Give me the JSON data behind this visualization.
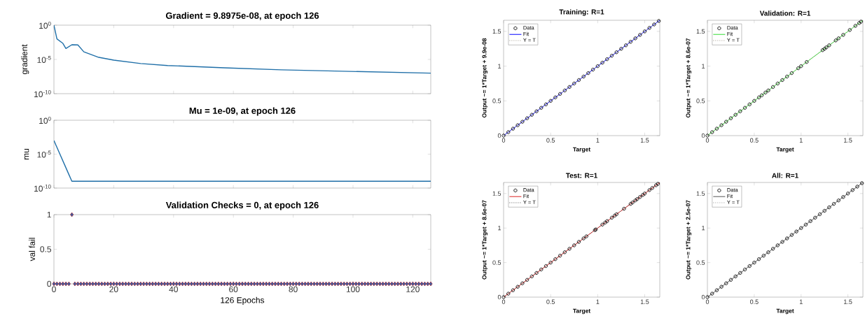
{
  "chart_data": [
    {
      "type": "line",
      "title": "Gradient = 9.8975e-08, at epoch 126",
      "ylabel": "gradient",
      "log": "y",
      "xlim": [
        0,
        126
      ],
      "xticks": [
        0,
        20,
        40,
        60,
        80,
        100,
        120
      ],
      "ylim": [
        1e-10,
        1
      ],
      "yticks": [
        {
          "value": 1e-10,
          "label": "10$^{-10}$"
        },
        {
          "value": 1e-05,
          "label": "10$^{-5}$"
        },
        {
          "value": 1,
          "label": "10$^{0}$"
        }
      ],
      "tick_labels": "y",
      "color": "#1f6fa8",
      "x": [
        0,
        1,
        3,
        4,
        6,
        8,
        10,
        15,
        20,
        29,
        38,
        57,
        76,
        94,
        126
      ],
      "values": [
        1,
        0.01,
        0.0022,
        0.0004,
        0.0014,
        0.0013,
        0.00013,
        2e-05,
        8e-06,
        2.5e-06,
        1.3e-06,
        6e-07,
        3e-07,
        2e-07,
        9.8975e-08
      ]
    },
    {
      "type": "line",
      "title": "Mu = 1e-09, at epoch 126",
      "ylabel": "mu",
      "log": "y",
      "xlim": [
        0,
        126
      ],
      "xticks": [
        0,
        20,
        40,
        60,
        80,
        100,
        120
      ],
      "ylim": [
        1e-10,
        1
      ],
      "yticks": [
        {
          "value": 1e-10,
          "label": "10$^{-10}$"
        },
        {
          "value": 1e-05,
          "label": "10$^{-5}$"
        },
        {
          "value": 1,
          "label": "10$^{0}$"
        }
      ],
      "tick_labels": "y",
      "color": "#1f6fa8",
      "x": [
        0,
        1,
        2,
        3,
        4,
        5,
        6,
        126
      ],
      "values": [
        0.001,
        0.0001,
        1e-05,
        1e-06,
        1e-07,
        1e-08,
        1e-09,
        1e-09
      ]
    },
    {
      "type": "scatter",
      "title": "Validation Checks = 0, at epoch 126",
      "xlabel": "126 Epochs",
      "ylabel": "val fail",
      "marker": "diamond",
      "xlim": [
        0,
        126
      ],
      "xticks": [
        0,
        20,
        40,
        60,
        80,
        100,
        120
      ],
      "ylim": [
        0,
        1
      ],
      "yticks": [
        0,
        0.5,
        1
      ],
      "color": "#3f5a9e",
      "x": [
        0,
        1,
        2,
        3,
        4,
        5,
        6,
        7,
        8,
        9,
        10,
        11,
        12,
        13,
        14,
        15,
        16,
        17,
        18,
        19,
        20,
        21,
        22,
        23,
        24,
        25,
        26,
        27,
        28,
        29,
        30,
        31,
        32,
        33,
        34,
        35,
        36,
        37,
        38,
        39,
        40,
        41,
        42,
        43,
        44,
        45,
        46,
        47,
        48,
        49,
        50,
        51,
        52,
        53,
        54,
        55,
        56,
        57,
        58,
        59,
        60,
        61,
        62,
        63,
        64,
        65,
        66,
        67,
        68,
        69,
        70,
        71,
        72,
        73,
        74,
        75,
        76,
        77,
        78,
        79,
        80,
        81,
        82,
        83,
        84,
        85,
        86,
        87,
        88,
        89,
        90,
        91,
        92,
        93,
        94,
        95,
        96,
        97,
        98,
        99,
        100,
        101,
        102,
        103,
        104,
        105,
        106,
        107,
        108,
        109,
        110,
        111,
        112,
        113,
        114,
        115,
        116,
        117,
        118,
        119,
        120,
        121,
        122,
        123,
        124,
        125,
        126
      ],
      "values": [
        0,
        0,
        0,
        0,
        0,
        0,
        1,
        0,
        0,
        0,
        0,
        0,
        0,
        0,
        0,
        0,
        0,
        0,
        0,
        0,
        0,
        0,
        0,
        0,
        0,
        0,
        0,
        0,
        0,
        0,
        0,
        0,
        0,
        0,
        0,
        0,
        0,
        0,
        0,
        0,
        0,
        0,
        0,
        0,
        0,
        0,
        0,
        0,
        0,
        0,
        0,
        0,
        0,
        0,
        0,
        0,
        0,
        0,
        0,
        0,
        0,
        0,
        0,
        0,
        0,
        0,
        0,
        0,
        0,
        0,
        0,
        0,
        0,
        0,
        0,
        0,
        0,
        0,
        0,
        0,
        0,
        0,
        0,
        0,
        0,
        0,
        0,
        0,
        0,
        0,
        0,
        0,
        0,
        0,
        0,
        0,
        0,
        0,
        0,
        0,
        0,
        0,
        0,
        0,
        0,
        0,
        0,
        0,
        0,
        0,
        0,
        0,
        0,
        0,
        0,
        0,
        0,
        0,
        0,
        0,
        0,
        0,
        0,
        0,
        0,
        0,
        0
      ]
    },
    {
      "type": "scatter",
      "title": "Training: R=1",
      "xlabel": "Target",
      "ylabel": "Output ~= 1*Target + 9.9e-08",
      "legend": "top left",
      "xlim": [
        0,
        1.66
      ],
      "xticks": [
        0,
        0.5,
        1,
        1.5
      ],
      "ylim": [
        0,
        1.66
      ],
      "yticks": [
        0,
        0.5,
        1,
        1.5
      ],
      "series": [
        {
          "name": "Data",
          "type": "scatter",
          "marker": "circle",
          "color": "#000000",
          "x": [
            0,
            0.05,
            0.1,
            0.15,
            0.2,
            0.25,
            0.3,
            0.35,
            0.4,
            0.45,
            0.5,
            0.55,
            0.6,
            0.65,
            0.7,
            0.75,
            0.8,
            0.85,
            0.9,
            0.95,
            1,
            1.05,
            1.1,
            1.15,
            1.2,
            1.25,
            1.3,
            1.35,
            1.4,
            1.45,
            1.5,
            1.55,
            1.6,
            1.65
          ],
          "values": [
            0,
            0.05,
            0.1,
            0.15,
            0.2,
            0.25,
            0.3,
            0.35,
            0.4,
            0.45,
            0.5,
            0.55,
            0.6,
            0.65,
            0.7,
            0.75,
            0.8,
            0.85,
            0.9,
            0.95,
            1,
            1.05,
            1.1,
            1.15,
            1.2,
            1.25,
            1.3,
            1.35,
            1.4,
            1.45,
            1.5,
            1.55,
            1.6,
            1.65
          ]
        },
        {
          "name": "Fit",
          "type": "line",
          "line_style": "solid",
          "color": "#0000ff",
          "x": [
            0,
            1.66
          ],
          "values": [
            0,
            1.66
          ]
        },
        {
          "name": "Y = T",
          "type": "line",
          "line_style": "dotted",
          "color": "#a09888",
          "x": [
            0,
            1.66
          ],
          "values": [
            0,
            1.66
          ]
        }
      ]
    },
    {
      "type": "scatter",
      "title": "Validation: R=1",
      "xlabel": "Target",
      "ylabel": "Output ~= 1*Target + 8.6e-07",
      "legend": "top left",
      "xlim": [
        0,
        1.66
      ],
      "xticks": [
        0,
        0.5,
        1,
        1.5
      ],
      "ylim": [
        0,
        1.66
      ],
      "yticks": [
        0,
        0.5,
        1,
        1.5
      ],
      "series": [
        {
          "name": "Data",
          "type": "scatter",
          "marker": "circle",
          "color": "#000000",
          "x": [
            0,
            0.05,
            0.1,
            0.15,
            0.2,
            0.25,
            0.3,
            0.35,
            0.4,
            0.45,
            0.5,
            0.55,
            0.58,
            0.62,
            0.65,
            0.7,
            0.75,
            0.8,
            0.85,
            0.9,
            0.97,
            1,
            1.06,
            1.23,
            1.25,
            1.27,
            1.3,
            1.37,
            1.4,
            1.45,
            1.52,
            1.58,
            1.62,
            1.64
          ],
          "values": [
            0,
            0.05,
            0.1,
            0.15,
            0.2,
            0.25,
            0.3,
            0.35,
            0.4,
            0.45,
            0.5,
            0.55,
            0.58,
            0.62,
            0.65,
            0.7,
            0.75,
            0.8,
            0.85,
            0.9,
            0.97,
            1,
            1.06,
            1.23,
            1.25,
            1.27,
            1.3,
            1.37,
            1.4,
            1.45,
            1.52,
            1.58,
            1.62,
            1.64
          ]
        },
        {
          "name": "Fit",
          "type": "line",
          "line_style": "solid",
          "color": "#33dd33",
          "x": [
            0,
            1.66
          ],
          "values": [
            0,
            1.66
          ]
        },
        {
          "name": "Y = T",
          "type": "line",
          "line_style": "dotted",
          "color": "#a09888",
          "x": [
            0,
            1.66
          ],
          "values": [
            0,
            1.66
          ]
        }
      ]
    },
    {
      "type": "scatter",
      "title": "Test: R=1",
      "xlabel": "Target",
      "ylabel": "Output ~= 1*Target + 8.6e-07",
      "legend": "top left",
      "xlim": [
        0,
        1.66
      ],
      "xticks": [
        0,
        0.5,
        1,
        1.5
      ],
      "ylim": [
        0,
        1.66
      ],
      "yticks": [
        0,
        0.5,
        1,
        1.5
      ],
      "series": [
        {
          "name": "Data",
          "type": "scatter",
          "marker": "circle",
          "color": "#000000",
          "x": [
            0,
            0.05,
            0.1,
            0.15,
            0.2,
            0.25,
            0.3,
            0.35,
            0.4,
            0.45,
            0.5,
            0.55,
            0.6,
            0.65,
            0.7,
            0.75,
            0.8,
            0.85,
            0.88,
            0.97,
            0.98,
            1.05,
            1.08,
            1.1,
            1.15,
            1.18,
            1.2,
            1.28,
            1.35,
            1.37,
            1.4,
            1.42,
            1.45,
            1.48,
            1.5,
            1.55,
            1.58,
            1.62,
            1.64
          ],
          "values": [
            0,
            0.05,
            0.1,
            0.15,
            0.2,
            0.25,
            0.3,
            0.35,
            0.4,
            0.45,
            0.5,
            0.55,
            0.6,
            0.65,
            0.7,
            0.75,
            0.8,
            0.85,
            0.88,
            0.97,
            0.98,
            1.05,
            1.08,
            1.1,
            1.15,
            1.18,
            1.2,
            1.28,
            1.35,
            1.37,
            1.4,
            1.42,
            1.45,
            1.48,
            1.5,
            1.55,
            1.58,
            1.62,
            1.64
          ]
        },
        {
          "name": "Fit",
          "type": "line",
          "line_style": "solid",
          "color": "#dd2222",
          "x": [
            0,
            1.66
          ],
          "values": [
            0,
            1.66
          ]
        },
        {
          "name": "Y = T",
          "type": "line",
          "line_style": "dotted",
          "color": "#555555",
          "x": [
            0,
            1.66
          ],
          "values": [
            0,
            1.66
          ]
        }
      ]
    },
    {
      "type": "scatter",
      "title": "All: R=1",
      "xlabel": "Target",
      "ylabel": "Output ~= 1*Target + 2.5e-07",
      "legend": "top left",
      "xlim": [
        0,
        1.66
      ],
      "xticks": [
        0,
        0.5,
        1,
        1.5
      ],
      "ylim": [
        0,
        1.66
      ],
      "yticks": [
        0,
        0.5,
        1,
        1.5
      ],
      "series": [
        {
          "name": "Data",
          "type": "scatter",
          "marker": "circle",
          "color": "#000000",
          "x": [
            0,
            0.05,
            0.1,
            0.15,
            0.2,
            0.25,
            0.3,
            0.35,
            0.4,
            0.45,
            0.5,
            0.55,
            0.6,
            0.65,
            0.7,
            0.75,
            0.8,
            0.85,
            0.9,
            0.95,
            1,
            1.05,
            1.1,
            1.15,
            1.2,
            1.25,
            1.3,
            1.35,
            1.4,
            1.45,
            1.5,
            1.55,
            1.6,
            1.65
          ],
          "values": [
            0,
            0.05,
            0.1,
            0.15,
            0.2,
            0.25,
            0.3,
            0.35,
            0.4,
            0.45,
            0.5,
            0.55,
            0.6,
            0.65,
            0.7,
            0.75,
            0.8,
            0.85,
            0.9,
            0.95,
            1,
            1.05,
            1.1,
            1.15,
            1.2,
            1.25,
            1.3,
            1.35,
            1.4,
            1.45,
            1.5,
            1.55,
            1.6,
            1.65
          ]
        },
        {
          "name": "Fit",
          "type": "line",
          "line_style": "solid",
          "color": "#555555",
          "x": [
            0,
            1.66
          ],
          "values": [
            0,
            1.66
          ]
        },
        {
          "name": "Y = T",
          "type": "line",
          "line_style": "dotted",
          "color": "#999999",
          "x": [
            0,
            1.66
          ],
          "values": [
            0,
            1.66
          ]
        }
      ]
    }
  ]
}
